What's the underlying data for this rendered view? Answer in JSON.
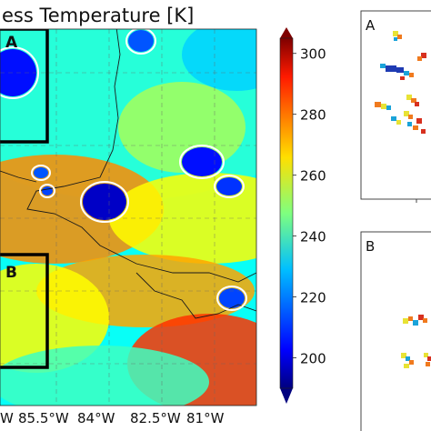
{
  "chart_data": [
    {
      "type": "heatmap",
      "title": "ess Temperature [K]",
      "xlabel": "",
      "ylabel": "",
      "x_tick_labels": [
        "85.5°W",
        "84°W",
        "82.5°W",
        "81°W"
      ],
      "x_tick_partial": "W",
      "colorbar": {
        "range": [
          190,
          305
        ],
        "ticks": [
          200,
          220,
          240,
          260,
          280,
          300
        ],
        "colormap": "jet"
      },
      "boxes": [
        {
          "label": "A"
        },
        {
          "label": "B"
        }
      ],
      "grid": true,
      "contour_color": "#ffffff",
      "coastline_color": "#1a1a1a",
      "box_color": "#000000"
    },
    {
      "type": "scatter",
      "panel_label": "A",
      "marker_colors": [
        "#1aa3d9",
        "#e8e335",
        "#f07a1e",
        "#d7301f",
        "#1f3bb3"
      ]
    },
    {
      "type": "scatter",
      "panel_label": "B",
      "marker_colors": [
        "#1aa3d9",
        "#e8e335",
        "#f07a1e",
        "#d7301f",
        "#1f3bb3"
      ]
    }
  ]
}
